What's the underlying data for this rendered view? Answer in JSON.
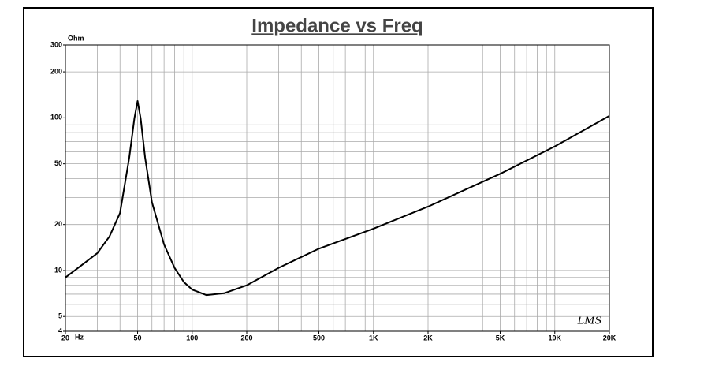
{
  "chart_data": {
    "type": "line",
    "title": "Impedance vs Freq",
    "x_label": "Hz",
    "y_label": "Ohm",
    "annotation": "LMS",
    "xscale": "log",
    "yscale": "log",
    "grid": true,
    "xlim": [
      20,
      20000
    ],
    "ylim": [
      4,
      300
    ],
    "xticks": [
      20,
      50,
      100,
      200,
      500,
      {
        "value": 1000,
        "label": "1K"
      },
      {
        "value": 2000,
        "label": "2K"
      },
      {
        "value": 5000,
        "label": "5K"
      },
      {
        "value": 10000,
        "label": "10K"
      },
      {
        "value": 20000,
        "label": "20K"
      }
    ],
    "yticks": [
      4,
      5,
      10,
      20,
      50,
      100,
      200,
      300
    ],
    "xgrid": [
      20,
      30,
      40,
      50,
      60,
      70,
      80,
      90,
      100,
      200,
      300,
      400,
      500,
      600,
      700,
      800,
      900,
      1000,
      2000,
      3000,
      4000,
      5000,
      6000,
      7000,
      8000,
      9000,
      10000,
      20000
    ],
    "ygrid": [
      4,
      5,
      6,
      7,
      8,
      9,
      10,
      20,
      30,
      40,
      50,
      60,
      70,
      80,
      90,
      100,
      200,
      300
    ],
    "x": [
      20,
      25,
      30,
      35,
      40,
      45,
      48,
      50,
      52,
      55,
      60,
      70,
      80,
      90,
      100,
      120,
      150,
      200,
      300,
      500,
      1000,
      2000,
      5000,
      10000,
      20000
    ],
    "series": [
      {
        "name": "Impedance",
        "color": "#000000",
        "values": [
          9.0,
          11,
          13,
          16.7,
          23.8,
          55,
          99,
          129,
          99,
          55,
          28,
          14.8,
          10.4,
          8.4,
          7.5,
          6.9,
          7.1,
          8.0,
          10.4,
          13.9,
          18.8,
          26.2,
          43,
          65,
          103
        ]
      }
    ]
  }
}
